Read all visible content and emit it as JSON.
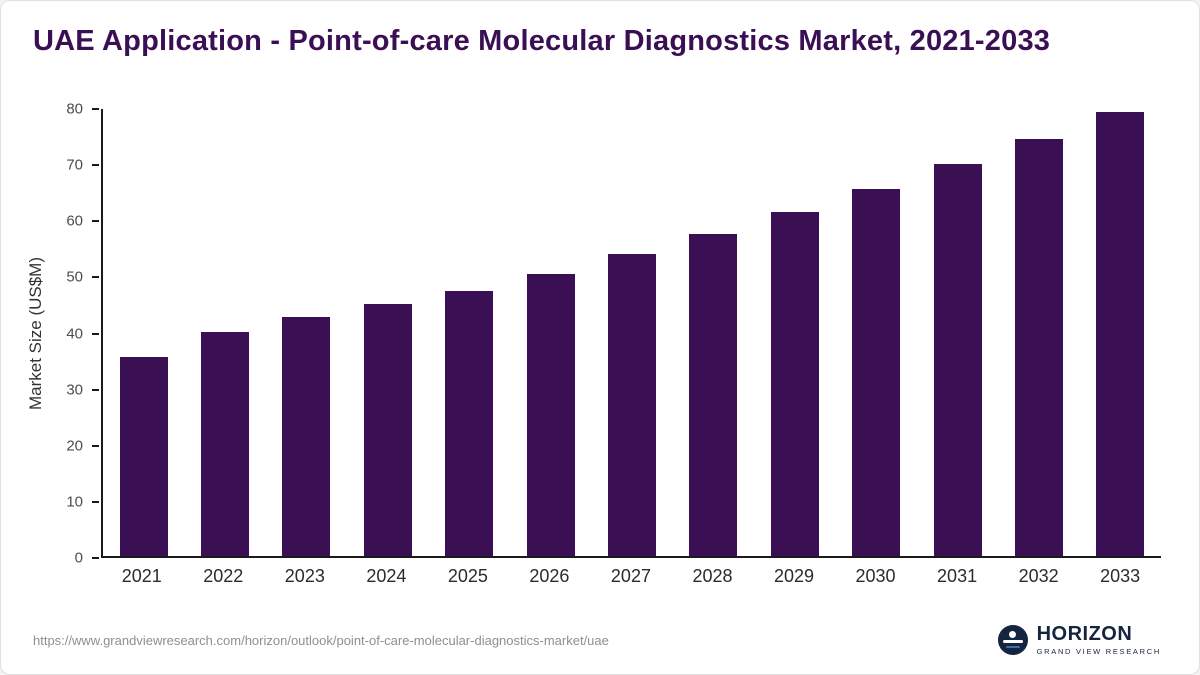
{
  "page": {
    "title": "UAE Application - Point-of-care Molecular Diagnostics Market, 2021-2033",
    "source_url": "https://www.grandviewresearch.com/horizon/outlook/point-of-care-molecular-diagnostics-market/uae",
    "logo": {
      "name": "HORIZON",
      "subtitle": "GRAND VIEW RESEARCH"
    }
  },
  "colors": {
    "title": "#3b0f54",
    "bar": "#3b0f54",
    "axis": "#1a1a1a",
    "tick_text": "#4d4d4d",
    "source_text": "#8f8f8f",
    "logo_navy": "#16253f",
    "background": "#ffffff"
  },
  "chart_data": {
    "type": "bar",
    "title": "UAE Application - Point-of-care Molecular Diagnostics Market, 2021-2033",
    "categories": [
      "2021",
      "2022",
      "2023",
      "2024",
      "2025",
      "2026",
      "2027",
      "2028",
      "2029",
      "2030",
      "2031",
      "2032",
      "2033"
    ],
    "values": [
      35.6,
      40.1,
      42.7,
      45.1,
      47.4,
      50.5,
      54.1,
      57.6,
      61.5,
      65.7,
      70.1,
      74.7,
      79.5
    ],
    "xlabel": "",
    "ylabel": "Market Size (US$M)",
    "ylim": [
      0,
      80
    ],
    "yticks": [
      0,
      10,
      20,
      30,
      40,
      50,
      60,
      70,
      80
    ],
    "grid": false,
    "legend": false,
    "bar_color": "#3b0f54"
  }
}
